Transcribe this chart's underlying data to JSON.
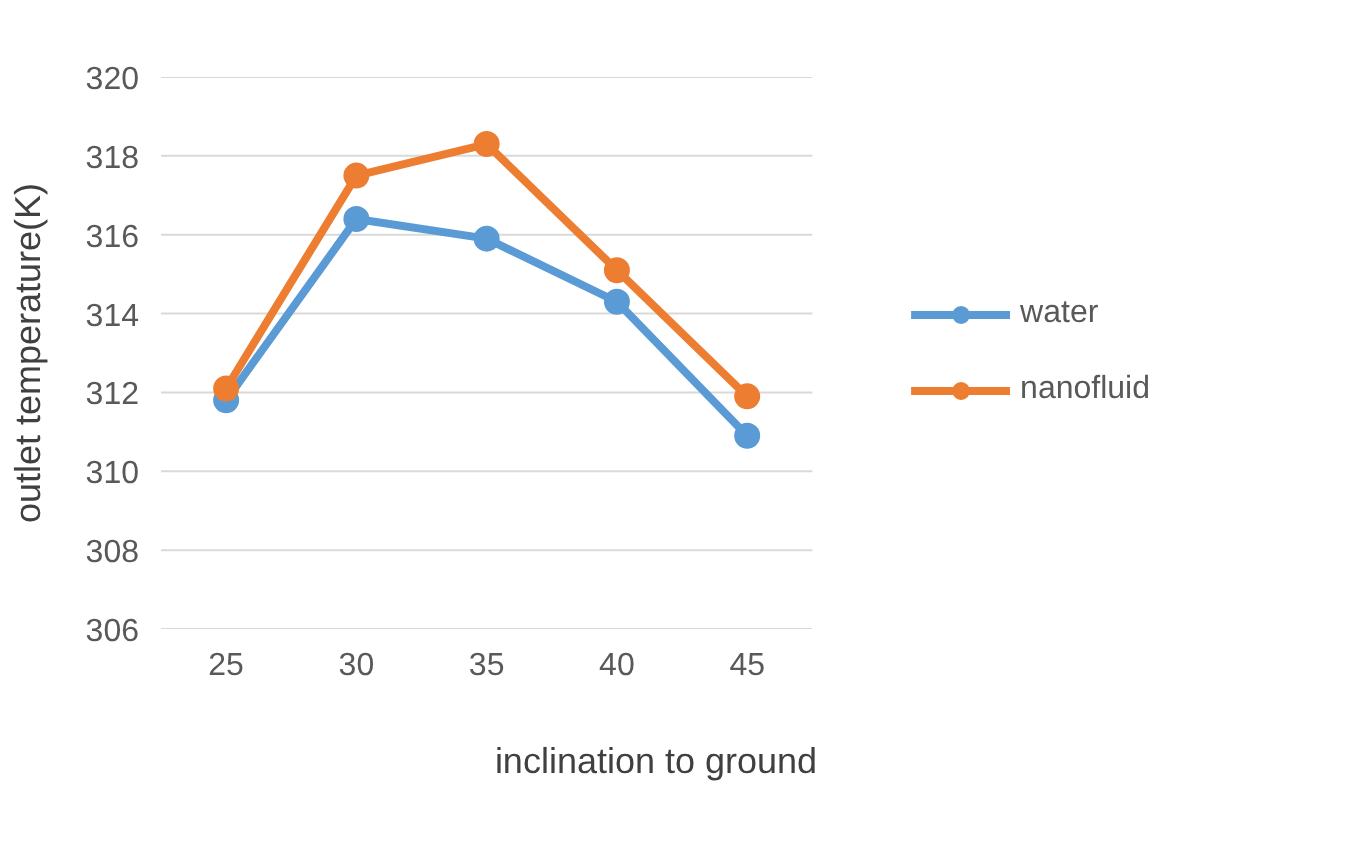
{
  "chart_data": {
    "type": "line",
    "xlabel": "inclination to ground",
    "ylabel": "outlet temperature(K)",
    "categories": [
      "25",
      "30",
      "35",
      "40",
      "45"
    ],
    "series": [
      {
        "name": "water",
        "color": "#5b9bd5",
        "values": [
          311.8,
          316.4,
          315.9,
          314.3,
          310.9
        ]
      },
      {
        "name": "nanofluid",
        "color": "#ed7d31",
        "values": [
          312.1,
          317.5,
          318.3,
          315.1,
          311.9
        ]
      }
    ],
    "ylim": [
      306,
      320
    ],
    "yticks": [
      306,
      308,
      310,
      312,
      314,
      316,
      318,
      320
    ],
    "grid": "y",
    "legend": "right",
    "marker": "circle",
    "line_style": "solid"
  }
}
